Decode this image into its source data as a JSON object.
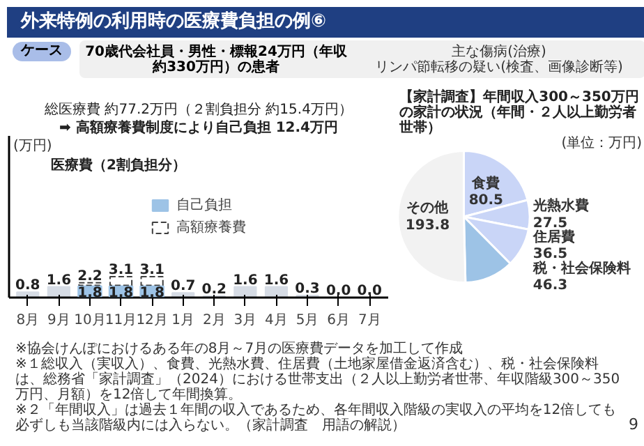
{
  "chart_data": [
    {
      "type": "bar",
      "title": "外来特例の利用時の医療費負担の例⑥",
      "ylabel": "(万円)",
      "categories": [
        "8月",
        "9月",
        "10月",
        "11月",
        "12月",
        "1月",
        "2月",
        "3月",
        "4月",
        "5月",
        "6月",
        "7月"
      ],
      "stacked": true,
      "series": [
        {
          "color": "#d6dce5",
          "values": [
            0.8,
            1.6,
            null,
            null,
            null,
            0.7,
            0.2,
            1.6,
            1.6,
            0.3,
            0.0,
            0.0
          ]
        },
        {
          "name": "自己負担",
          "color": "#9dc3e6",
          "values": [
            null,
            null,
            1.8,
            1.8,
            1.8,
            null,
            null,
            null,
            null,
            null,
            null,
            null
          ],
          "value_labels": [
            null,
            null,
            "1.8",
            "1.8",
            "1.8",
            null,
            null,
            null,
            null,
            null,
            null,
            null
          ]
        },
        {
          "name": "高額療養費",
          "color": "#ffffff",
          "line_style": "dashed",
          "values": [
            null,
            null,
            0.4,
            1.3,
            1.3,
            null,
            null,
            null,
            null,
            null,
            null,
            null
          ]
        }
      ],
      "totals": [
        "0.8",
        "1.6",
        "2.2",
        "3.1",
        "3.1",
        "0.7",
        "0.2",
        "1.6",
        "1.6",
        "0.3",
        "0.0",
        "0.0"
      ],
      "ylim": [
        0,
        24
      ],
      "tick_labels": "x",
      "legend": "center",
      "annotations": [
        "ケース",
        "70歳代会社員・男性・標報24万円（年収約330万円）の患者",
        "主な傷病(治療)",
        "リンパ節転移の疑い(検査、画像診断等)",
        "総医療費 約77.2万円（２割負担分 約15.4万円）",
        "➡ 高額療養費制度により自己負担 12.4万円",
        "医療費（2割負担分）",
        "※協会けんぽにおけるある年の8月～7月の医療費データを加工して作成"
      ]
    },
    {
      "type": "pie",
      "title": "【家計調査】年間収入300～350万円の家計の状況（年間・２人以上勤労者世帯）",
      "subtitle": "(単位：万円)",
      "categories": [
        "食費",
        "光熱水費",
        "住居費",
        "税・社会保険料",
        "その他"
      ],
      "values": [
        80.5,
        27.5,
        36.5,
        46.3,
        193.8
      ],
      "colors": [
        "#c9d5f7",
        "#c9d5f7",
        "#c9d5f7",
        "#9dc3e6",
        "#f2f2f2"
      ],
      "data_labels": true,
      "annotations": [
        "※１総収入（実収入）、食費、光熱水費、住居費（土地家屋借金返済含む）、税・社会保険料は、総務省「家計調査」（2024）における世帯支出（２人以上勤労者世帯、年収階級300～350万円、月額）を12倍して年間換算。",
        "※２「年間収入」は過去１年間の収入であるため、各年間収入階級の実収入の平均を12倍しても必ずしも当該階級内には入らない。（家計調査　用語の解説）",
        "9"
      ]
    }
  ]
}
